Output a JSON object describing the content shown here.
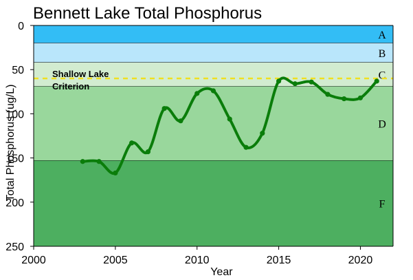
{
  "chart_data": {
    "type": "line",
    "title": "Bennett Lake Total Phosphorus",
    "xlabel": "Year",
    "ylabel": "Total Phosphorus (ug/L)",
    "xlim": [
      2000,
      2022
    ],
    "ylim": [
      0,
      250
    ],
    "y_inverted": true,
    "x_ticks": [
      2000,
      2005,
      2010,
      2015,
      2020
    ],
    "y_ticks": [
      0,
      50,
      100,
      150,
      200,
      250
    ],
    "grid": false,
    "legend": "none",
    "series": [
      {
        "x": [
          2003,
          2004,
          2005,
          2006,
          2007,
          2008,
          2009,
          2010,
          2011,
          2012,
          2013,
          2014,
          2015,
          2016,
          2017,
          2018,
          2019,
          2020,
          2021
        ],
        "y": [
          154,
          154,
          167,
          133,
          143,
          94,
          108,
          77,
          74,
          106,
          138,
          122,
          63,
          66,
          64,
          78,
          83,
          82,
          63
        ],
        "color": "#0a7d0a",
        "smooth": true
      }
    ],
    "bands": [
      {
        "label": "A",
        "from": 0,
        "to": 20,
        "color": "#33bdf5"
      },
      {
        "label": "B",
        "from": 20,
        "to": 42,
        "color": "#b9e6fb"
      },
      {
        "label": "C",
        "from": 42,
        "to": 69,
        "color": "#d2ecd0"
      },
      {
        "label": "D",
        "from": 69,
        "to": 153,
        "color": "#99d79c"
      },
      {
        "label": "F",
        "from": 153,
        "to": 250,
        "color": "#4daf60"
      }
    ],
    "reference_line": {
      "value": 60,
      "label_lines": [
        "Shallow Lake",
        "Criterion"
      ],
      "color": "#f0e020",
      "style": "dashed"
    }
  }
}
